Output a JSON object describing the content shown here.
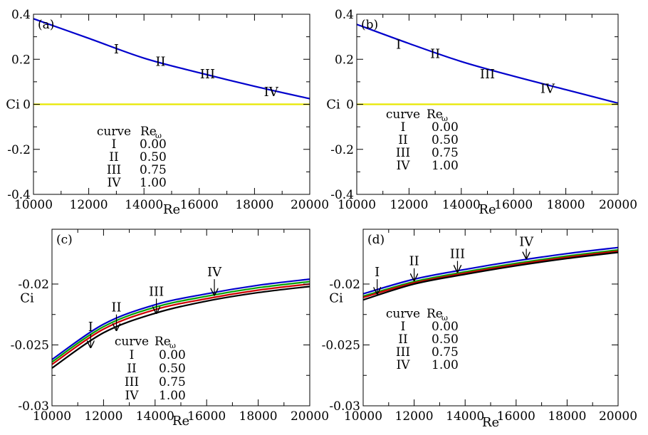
{
  "chart_data": [
    {
      "type": "line",
      "panel_label": "(a)",
      "xlabel": "Re",
      "ylabel": "Ci",
      "xlim": [
        10000,
        20000
      ],
      "ylim": [
        -0.4,
        0.4
      ],
      "x_ticks": [
        10000,
        12000,
        14000,
        16000,
        18000,
        20000
      ],
      "y_ticks": [
        -0.4,
        -0.2,
        0,
        0.2,
        0.4
      ],
      "y_tick_labels": [
        "-0.4",
        "-0.2",
        "0",
        "0.2",
        "0.4"
      ],
      "series": [
        {
          "color": "#0000cc",
          "x": [
            10000,
            12000,
            14000,
            16000,
            18000,
            20000
          ],
          "y": [
            0.38,
            0.293,
            0.205,
            0.14,
            0.08,
            0.025
          ]
        },
        {
          "color": "#e8e800",
          "x": [
            10000,
            20000
          ],
          "y": [
            0,
            0
          ]
        }
      ],
      "annotations": [
        {
          "text": "I",
          "x": 13000,
          "y": 0.245
        },
        {
          "text": "II",
          "x": 14600,
          "y": 0.19
        },
        {
          "text": "III",
          "x": 16300,
          "y": 0.135
        },
        {
          "text": "IV",
          "x": 18600,
          "y": 0.055
        }
      ],
      "legend": {
        "header": [
          "curve",
          "Re",
          "ω"
        ],
        "rows": [
          [
            "I",
            "0.00"
          ],
          [
            "II",
            "0.50"
          ],
          [
            "III",
            "0.75"
          ],
          [
            "IV",
            "1.00"
          ]
        ]
      }
    },
    {
      "type": "line",
      "panel_label": "(b)",
      "xlabel": "Re",
      "ylabel": "Ci",
      "xlim": [
        10000,
        20000
      ],
      "ylim": [
        -0.4,
        0.4
      ],
      "x_ticks": [
        10000,
        12000,
        14000,
        16000,
        18000,
        20000
      ],
      "y_ticks": [
        -0.4,
        -0.2,
        0,
        0.2,
        0.4
      ],
      "y_tick_labels": [
        "-0.4",
        "-0.2",
        "0",
        "0.2",
        "0.4"
      ],
      "series": [
        {
          "color": "#0000cc",
          "x": [
            10000,
            12000,
            14000,
            16000,
            18000,
            20000
          ],
          "y": [
            0.355,
            0.27,
            0.19,
            0.125,
            0.065,
            0.005
          ]
        },
        {
          "color": "#e8e800",
          "x": [
            10000,
            20000
          ],
          "y": [
            0,
            0
          ]
        }
      ],
      "annotations": [
        {
          "text": "I",
          "x": 11600,
          "y": 0.265
        },
        {
          "text": "II",
          "x": 13000,
          "y": 0.225
        },
        {
          "text": "III",
          "x": 15000,
          "y": 0.135
        },
        {
          "text": "IV",
          "x": 17300,
          "y": 0.07
        }
      ],
      "legend": {
        "header": [
          "curve",
          "Re",
          "ω"
        ],
        "rows": [
          [
            "I",
            "0.00"
          ],
          [
            "II",
            "0.50"
          ],
          [
            "III",
            "0.75"
          ],
          [
            "IV",
            "1.00"
          ]
        ]
      }
    },
    {
      "type": "line",
      "panel_label": "(c)",
      "xlabel": "Re",
      "ylabel": "Ci",
      "xlim": [
        10000,
        20000
      ],
      "ylim": [
        -0.03,
        -0.0155
      ],
      "x_ticks": [
        10000,
        12000,
        14000,
        16000,
        18000,
        20000
      ],
      "y_ticks": [
        -0.03,
        -0.025,
        -0.02
      ],
      "y_tick_labels": [
        "-0.03",
        "-0.025",
        "-0.02"
      ],
      "series": [
        {
          "color": "#0000cc",
          "x": [
            10000,
            12000,
            14000,
            16000,
            18000,
            20000
          ],
          "y": [
            -0.0262,
            -0.0233,
            -0.0217,
            -0.0208,
            -0.0201,
            -0.0196
          ]
        },
        {
          "color": "#00a000",
          "x": [
            10000,
            12000,
            14000,
            16000,
            18000,
            20000
          ],
          "y": [
            -0.0264,
            -0.0235,
            -0.0219,
            -0.021,
            -0.0203,
            -0.0198
          ]
        },
        {
          "color": "#cc0000",
          "x": [
            10000,
            12000,
            14000,
            16000,
            18000,
            20000
          ],
          "y": [
            -0.0266,
            -0.0237,
            -0.0221,
            -0.0212,
            -0.0205,
            -0.02
          ]
        },
        {
          "color": "#000000",
          "x": [
            10000,
            12000,
            14000,
            16000,
            18000,
            20000
          ],
          "y": [
            -0.0269,
            -0.024,
            -0.0224,
            -0.0214,
            -0.0207,
            -0.0202
          ]
        }
      ],
      "annotations": [
        {
          "text": "I",
          "x": 11500,
          "y": -0.0241,
          "arrow_to": -0.0252
        },
        {
          "text": "II",
          "x": 12500,
          "y": -0.0225,
          "arrow_to": -0.0238
        },
        {
          "text": "III",
          "x": 14050,
          "y": -0.0212,
          "arrow_to": -0.0224
        },
        {
          "text": "IV",
          "x": 16300,
          "y": -0.0196,
          "arrow_to": -0.0209
        }
      ],
      "legend": {
        "header": [
          "curve",
          "Re",
          "ω"
        ],
        "rows": [
          [
            "I",
            "0.00"
          ],
          [
            "II",
            "0.50"
          ],
          [
            "III",
            "0.75"
          ],
          [
            "IV",
            "1.00"
          ]
        ]
      }
    },
    {
      "type": "line",
      "panel_label": "(d)",
      "xlabel": "Re",
      "ylabel": "Ci",
      "xlim": [
        10000,
        20000
      ],
      "ylim": [
        -0.03,
        -0.0155
      ],
      "x_ticks": [
        10000,
        12000,
        14000,
        16000,
        18000,
        20000
      ],
      "y_ticks": [
        -0.03,
        -0.025,
        -0.02
      ],
      "y_tick_labels": [
        "-0.03",
        "-0.025",
        "-0.02"
      ],
      "series": [
        {
          "color": "#0000cc",
          "x": [
            10000,
            12000,
            14000,
            16000,
            18000,
            20000
          ],
          "y": [
            -0.0208,
            -0.0196,
            -0.0188,
            -0.0181,
            -0.0175,
            -0.017
          ]
        },
        {
          "color": "#00a000",
          "x": [
            10000,
            12000,
            14000,
            16000,
            18000,
            20000
          ],
          "y": [
            -0.021,
            -0.0198,
            -0.019,
            -0.0183,
            -0.0177,
            -0.0172
          ]
        },
        {
          "color": "#cc0000",
          "x": [
            10000,
            12000,
            14000,
            16000,
            18000,
            20000
          ],
          "y": [
            -0.0211,
            -0.0199,
            -0.0191,
            -0.0184,
            -0.0178,
            -0.0173
          ]
        },
        {
          "color": "#000000",
          "x": [
            10000,
            12000,
            14000,
            16000,
            18000,
            20000
          ],
          "y": [
            -0.0213,
            -0.02,
            -0.0192,
            -0.0185,
            -0.0179,
            -0.0174
          ]
        }
      ],
      "annotations": [
        {
          "text": "I",
          "x": 10550,
          "y": -0.0196,
          "arrow_to": -0.0208
        },
        {
          "text": "II",
          "x": 12000,
          "y": -0.0187,
          "arrow_to": -0.0197
        },
        {
          "text": "III",
          "x": 13700,
          "y": -0.0181,
          "arrow_to": -0.019
        },
        {
          "text": "IV",
          "x": 16400,
          "y": -0.0171,
          "arrow_to": -0.0179
        }
      ],
      "legend": {
        "header": [
          "curve",
          "Re",
          "ω"
        ],
        "rows": [
          [
            "I",
            "0.00"
          ],
          [
            "II",
            "0.50"
          ],
          [
            "III",
            "0.75"
          ],
          [
            "IV",
            "1.00"
          ]
        ]
      }
    }
  ]
}
